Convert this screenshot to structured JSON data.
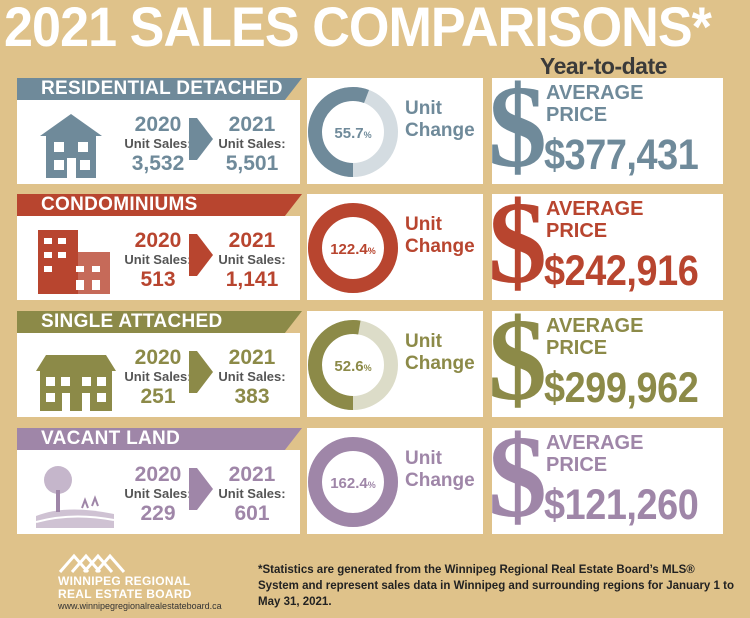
{
  "title": "2021 SALES COMPARISONS*",
  "subtitle": "Year-to-date",
  "unit_sales_label": "Unit Sales:",
  "unit_change_label": [
    "Unit",
    "Change"
  ],
  "average_price_label": [
    "AVERAGE",
    "PRICE"
  ],
  "dollar_sign": "$",
  "year_a": "2020",
  "year_b": "2021",
  "categories": [
    {
      "name": "RESIDENTIAL DETACHED",
      "sales_2020": "3,532",
      "sales_2021": "5,501",
      "unit_change": "55.7",
      "unit_change_fraction": 0.557,
      "average_price": "$377,431",
      "color": "#6f8a9a",
      "icon": "house-icon"
    },
    {
      "name": "CONDOMINIUMS",
      "sales_2020": "513",
      "sales_2021": "1,141",
      "unit_change": "122.4",
      "unit_change_fraction": 1.0,
      "average_price": "$242,916",
      "color": "#b8452f",
      "icon": "condo-building-icon"
    },
    {
      "name": "SINGLE ATTACHED",
      "sales_2020": "251",
      "sales_2021": "383",
      "unit_change": "52.6",
      "unit_change_fraction": 0.526,
      "average_price": "$299,962",
      "color": "#8c8a48",
      "icon": "attached-house-icon"
    },
    {
      "name": "VACANT LAND",
      "sales_2020": "229",
      "sales_2021": "601",
      "unit_change": "162.4",
      "unit_change_fraction": 1.0,
      "average_price": "$121,260",
      "color": "#9f86a8",
      "icon": "land-tree-icon"
    }
  ],
  "percent_sign": "%",
  "footer": {
    "org_line1": "WINNIPEG REGIONAL",
    "org_line2": "REAL ESTATE BOARD",
    "url": "www.winnipegregionalrealestateboard.ca",
    "footnote": "*Statistics are generated from the Winnipeg Regional Real Estate Board’s MLS® System and represent sales data in Winnipeg and surrounding regions for January 1 to May 31, 2021."
  }
}
